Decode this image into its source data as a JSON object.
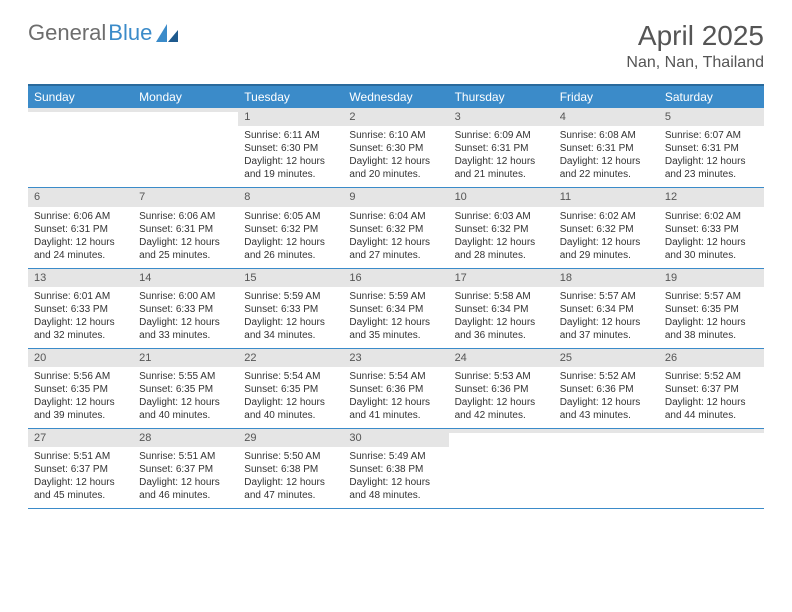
{
  "logo": {
    "part1": "General",
    "part2": "Blue"
  },
  "header": {
    "title": "April 2025",
    "location": "Nan, Nan, Thailand"
  },
  "header_bg": "#3b8bc9",
  "header_border": "#2a6a9c",
  "daynum_bg": "#e5e5e5",
  "day_names": [
    "Sunday",
    "Monday",
    "Tuesday",
    "Wednesday",
    "Thursday",
    "Friday",
    "Saturday"
  ],
  "weeks": [
    [
      {
        "n": "",
        "sr": "",
        "ss": "",
        "dl": ""
      },
      {
        "n": "",
        "sr": "",
        "ss": "",
        "dl": ""
      },
      {
        "n": "1",
        "sr": "Sunrise: 6:11 AM",
        "ss": "Sunset: 6:30 PM",
        "dl": "Daylight: 12 hours and 19 minutes."
      },
      {
        "n": "2",
        "sr": "Sunrise: 6:10 AM",
        "ss": "Sunset: 6:30 PM",
        "dl": "Daylight: 12 hours and 20 minutes."
      },
      {
        "n": "3",
        "sr": "Sunrise: 6:09 AM",
        "ss": "Sunset: 6:31 PM",
        "dl": "Daylight: 12 hours and 21 minutes."
      },
      {
        "n": "4",
        "sr": "Sunrise: 6:08 AM",
        "ss": "Sunset: 6:31 PM",
        "dl": "Daylight: 12 hours and 22 minutes."
      },
      {
        "n": "5",
        "sr": "Sunrise: 6:07 AM",
        "ss": "Sunset: 6:31 PM",
        "dl": "Daylight: 12 hours and 23 minutes."
      }
    ],
    [
      {
        "n": "6",
        "sr": "Sunrise: 6:06 AM",
        "ss": "Sunset: 6:31 PM",
        "dl": "Daylight: 12 hours and 24 minutes."
      },
      {
        "n": "7",
        "sr": "Sunrise: 6:06 AM",
        "ss": "Sunset: 6:31 PM",
        "dl": "Daylight: 12 hours and 25 minutes."
      },
      {
        "n": "8",
        "sr": "Sunrise: 6:05 AM",
        "ss": "Sunset: 6:32 PM",
        "dl": "Daylight: 12 hours and 26 minutes."
      },
      {
        "n": "9",
        "sr": "Sunrise: 6:04 AM",
        "ss": "Sunset: 6:32 PM",
        "dl": "Daylight: 12 hours and 27 minutes."
      },
      {
        "n": "10",
        "sr": "Sunrise: 6:03 AM",
        "ss": "Sunset: 6:32 PM",
        "dl": "Daylight: 12 hours and 28 minutes."
      },
      {
        "n": "11",
        "sr": "Sunrise: 6:02 AM",
        "ss": "Sunset: 6:32 PM",
        "dl": "Daylight: 12 hours and 29 minutes."
      },
      {
        "n": "12",
        "sr": "Sunrise: 6:02 AM",
        "ss": "Sunset: 6:33 PM",
        "dl": "Daylight: 12 hours and 30 minutes."
      }
    ],
    [
      {
        "n": "13",
        "sr": "Sunrise: 6:01 AM",
        "ss": "Sunset: 6:33 PM",
        "dl": "Daylight: 12 hours and 32 minutes."
      },
      {
        "n": "14",
        "sr": "Sunrise: 6:00 AM",
        "ss": "Sunset: 6:33 PM",
        "dl": "Daylight: 12 hours and 33 minutes."
      },
      {
        "n": "15",
        "sr": "Sunrise: 5:59 AM",
        "ss": "Sunset: 6:33 PM",
        "dl": "Daylight: 12 hours and 34 minutes."
      },
      {
        "n": "16",
        "sr": "Sunrise: 5:59 AM",
        "ss": "Sunset: 6:34 PM",
        "dl": "Daylight: 12 hours and 35 minutes."
      },
      {
        "n": "17",
        "sr": "Sunrise: 5:58 AM",
        "ss": "Sunset: 6:34 PM",
        "dl": "Daylight: 12 hours and 36 minutes."
      },
      {
        "n": "18",
        "sr": "Sunrise: 5:57 AM",
        "ss": "Sunset: 6:34 PM",
        "dl": "Daylight: 12 hours and 37 minutes."
      },
      {
        "n": "19",
        "sr": "Sunrise: 5:57 AM",
        "ss": "Sunset: 6:35 PM",
        "dl": "Daylight: 12 hours and 38 minutes."
      }
    ],
    [
      {
        "n": "20",
        "sr": "Sunrise: 5:56 AM",
        "ss": "Sunset: 6:35 PM",
        "dl": "Daylight: 12 hours and 39 minutes."
      },
      {
        "n": "21",
        "sr": "Sunrise: 5:55 AM",
        "ss": "Sunset: 6:35 PM",
        "dl": "Daylight: 12 hours and 40 minutes."
      },
      {
        "n": "22",
        "sr": "Sunrise: 5:54 AM",
        "ss": "Sunset: 6:35 PM",
        "dl": "Daylight: 12 hours and 40 minutes."
      },
      {
        "n": "23",
        "sr": "Sunrise: 5:54 AM",
        "ss": "Sunset: 6:36 PM",
        "dl": "Daylight: 12 hours and 41 minutes."
      },
      {
        "n": "24",
        "sr": "Sunrise: 5:53 AM",
        "ss": "Sunset: 6:36 PM",
        "dl": "Daylight: 12 hours and 42 minutes."
      },
      {
        "n": "25",
        "sr": "Sunrise: 5:52 AM",
        "ss": "Sunset: 6:36 PM",
        "dl": "Daylight: 12 hours and 43 minutes."
      },
      {
        "n": "26",
        "sr": "Sunrise: 5:52 AM",
        "ss": "Sunset: 6:37 PM",
        "dl": "Daylight: 12 hours and 44 minutes."
      }
    ],
    [
      {
        "n": "27",
        "sr": "Sunrise: 5:51 AM",
        "ss": "Sunset: 6:37 PM",
        "dl": "Daylight: 12 hours and 45 minutes."
      },
      {
        "n": "28",
        "sr": "Sunrise: 5:51 AM",
        "ss": "Sunset: 6:37 PM",
        "dl": "Daylight: 12 hours and 46 minutes."
      },
      {
        "n": "29",
        "sr": "Sunrise: 5:50 AM",
        "ss": "Sunset: 6:38 PM",
        "dl": "Daylight: 12 hours and 47 minutes."
      },
      {
        "n": "30",
        "sr": "Sunrise: 5:49 AM",
        "ss": "Sunset: 6:38 PM",
        "dl": "Daylight: 12 hours and 48 minutes."
      },
      {
        "n": "",
        "sr": "",
        "ss": "",
        "dl": ""
      },
      {
        "n": "",
        "sr": "",
        "ss": "",
        "dl": ""
      },
      {
        "n": "",
        "sr": "",
        "ss": "",
        "dl": ""
      }
    ]
  ]
}
